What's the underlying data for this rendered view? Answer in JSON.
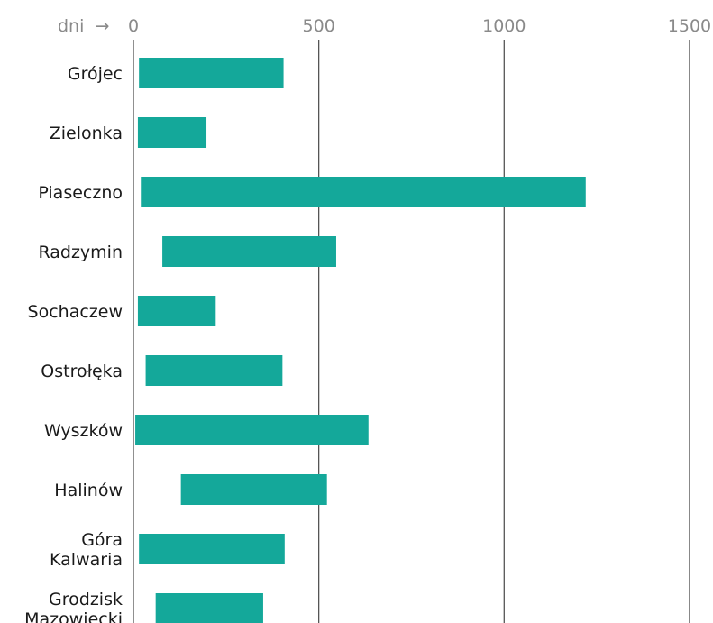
{
  "chart_data": {
    "type": "bar",
    "orientation": "horizontal",
    "subtype": "floating-range",
    "unit_label": "dni",
    "unit_arrow": "→",
    "x_ticks": [
      "0",
      "500",
      "1000",
      "1500"
    ],
    "xlim": [
      0,
      1500
    ],
    "grid": true,
    "colors": {
      "bar": "#14a89a",
      "grid": "#555555"
    },
    "categories": [
      "Grójec",
      "Zielonka",
      "Piaseczno",
      "Radzymin",
      "Sochaczew",
      "Ostrołęka",
      "Wyszków",
      "Halinów",
      "Góra Kalwaria",
      "Grodzisk Mazowiecki"
    ],
    "series": [
      {
        "start": [
          15,
          12,
          20,
          78,
          12,
          33,
          5,
          128,
          15,
          60
        ],
        "end": [
          405,
          197,
          1220,
          547,
          222,
          402,
          634,
          522,
          408,
          350
        ]
      }
    ]
  }
}
